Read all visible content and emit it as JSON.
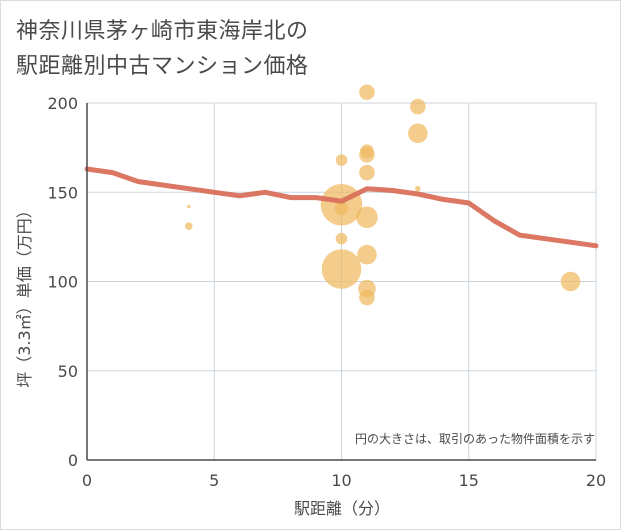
{
  "title_line1": "神奈川県茅ヶ崎市東海岸北の",
  "title_line2": "駅距離別中古マンション価格",
  "chart_data": {
    "type": "scatter",
    "xlabel": "駅距離（分）",
    "ylabel": "坪（3.3㎡）単価（万円）",
    "xlim": [
      0,
      20
    ],
    "ylim": [
      0,
      200
    ],
    "xticks": [
      0,
      5,
      10,
      15,
      20
    ],
    "yticks": [
      0,
      50,
      100,
      150,
      200
    ],
    "grid": true,
    "note": "円の大きさは、取引のあった物件面積を示す",
    "colors": {
      "bubble": "#f0b860",
      "line": "#d9705a",
      "grid": "#c9d6dd",
      "axis": "#4a4a4a"
    },
    "points": [
      {
        "x": 4,
        "y": 142,
        "size": 1
      },
      {
        "x": 4,
        "y": 131,
        "size": 3
      },
      {
        "x": 10,
        "y": 168,
        "size": 5
      },
      {
        "x": 10,
        "y": 143,
        "size": 20
      },
      {
        "x": 10,
        "y": 141,
        "size": 6
      },
      {
        "x": 10,
        "y": 124,
        "size": 5
      },
      {
        "x": 10,
        "y": 107,
        "size": 19
      },
      {
        "x": 11,
        "y": 206,
        "size": 7
      },
      {
        "x": 11,
        "y": 173,
        "size": 6
      },
      {
        "x": 11,
        "y": 171,
        "size": 7
      },
      {
        "x": 11,
        "y": 161,
        "size": 7
      },
      {
        "x": 11,
        "y": 136,
        "size": 10
      },
      {
        "x": 11,
        "y": 115,
        "size": 9
      },
      {
        "x": 11,
        "y": 96,
        "size": 8
      },
      {
        "x": 11,
        "y": 91,
        "size": 7
      },
      {
        "x": 13,
        "y": 198,
        "size": 7
      },
      {
        "x": 13,
        "y": 183,
        "size": 9
      },
      {
        "x": 13,
        "y": 152,
        "size": 2
      },
      {
        "x": 19,
        "y": 100,
        "size": 9
      }
    ],
    "line": {
      "x": [
        0,
        1,
        2,
        3,
        4,
        5,
        6,
        7,
        8,
        9,
        10,
        11,
        12,
        13,
        14,
        15,
        16,
        17,
        18,
        19,
        20
      ],
      "y": [
        163,
        161,
        156,
        154,
        152,
        150,
        148,
        150,
        147,
        147,
        145,
        152,
        151,
        149,
        146,
        144,
        134,
        126,
        124,
        122,
        120
      ]
    }
  }
}
